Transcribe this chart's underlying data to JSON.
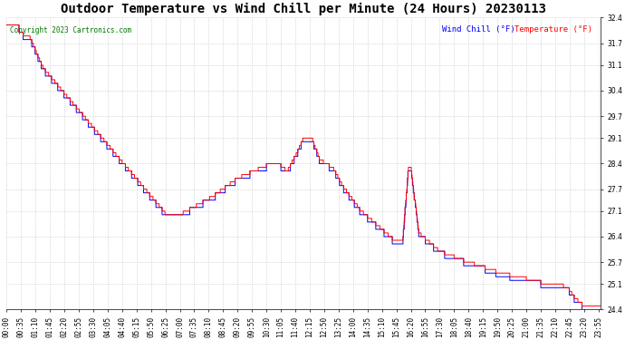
{
  "title": "Outdoor Temperature vs Wind Chill per Minute (24 Hours) 20230113",
  "copyright_text": "Copyright 2023 Cartronics.com",
  "legend_wind_chill": "Wind Chill (°F)",
  "legend_temperature": "Temperature (°F)",
  "wind_chill_color": "#0000FF",
  "temperature_color": "#FF0000",
  "background_color": "#FFFFFF",
  "grid_color": "#AAAAAA",
  "ylim": [
    24.4,
    32.4
  ],
  "yticks": [
    24.4,
    25.1,
    25.7,
    26.4,
    27.1,
    27.7,
    28.4,
    29.1,
    29.7,
    30.4,
    31.1,
    31.7,
    32.4
  ],
  "title_fontsize": 10,
  "tick_fontsize": 5.5
}
